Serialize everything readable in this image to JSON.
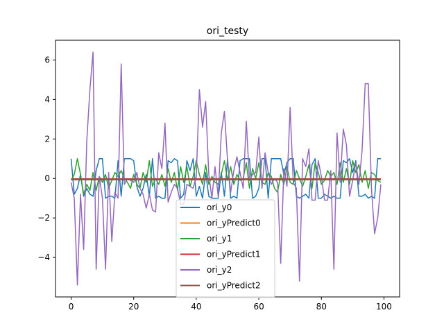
{
  "chart_data": {
    "type": "line",
    "title": "ori_testy",
    "xlabel": "",
    "ylabel": "",
    "xlim": [
      -5,
      105
    ],
    "ylim": [
      -6,
      7
    ],
    "xticks": [
      0,
      20,
      40,
      60,
      80,
      100
    ],
    "yticks": [
      -4,
      -2,
      0,
      2,
      4,
      6
    ],
    "grid": false,
    "legend_position": "lower-center",
    "series": [
      {
        "name": "ori_y0",
        "color": "#1f77b4",
        "x": [
          0,
          1,
          2,
          3,
          4,
          5,
          6,
          7,
          8,
          9,
          10,
          11,
          12,
          13,
          14,
          15,
          16,
          17,
          18,
          19,
          20,
          21,
          22,
          23,
          24,
          25,
          26,
          27,
          28,
          29,
          30,
          31,
          32,
          33,
          34,
          35,
          36,
          37,
          38,
          39,
          40,
          41,
          42,
          43,
          44,
          45,
          46,
          47,
          48,
          49,
          50,
          51,
          52,
          53,
          54,
          55,
          56,
          57,
          58,
          59,
          60,
          61,
          62,
          63,
          64,
          65,
          66,
          67,
          68,
          69,
          70,
          71,
          72,
          73,
          74,
          75,
          76,
          77,
          78,
          79,
          80,
          81,
          82,
          83,
          84,
          85,
          86,
          87,
          88,
          89,
          90,
          91,
          92,
          93,
          94,
          95,
          96,
          97,
          98,
          99
        ],
        "y": [
          1,
          -0.8,
          -0.5,
          0.2,
          -0.9,
          -0.5,
          -0.8,
          -0.9,
          0.4,
          1,
          1,
          -1,
          -0.9,
          -0.9,
          -1,
          0.9,
          -0.9,
          1,
          1,
          1,
          0.9,
          -0.4,
          -0.9,
          -0.5,
          0.2,
          -0.9,
          1,
          -1,
          -0.9,
          -1,
          -1,
          0.9,
          0.8,
          1,
          0.9,
          -1,
          -0.8,
          0.9,
          0.4,
          1,
          -0.9,
          -0.4,
          -1,
          0.3,
          -0.9,
          -1,
          -1,
          -1,
          0.3,
          -0.9,
          1,
          -1,
          -0.9,
          -1,
          0.9,
          1,
          1,
          1,
          -1,
          -0.9,
          -0.5,
          1,
          1,
          -1,
          1,
          1,
          1,
          1,
          0.2,
          0.8,
          1,
          1,
          -0.9,
          -1,
          -0.9,
          -0.8,
          -1,
          0.7,
          1,
          -1,
          -1,
          -0.8,
          -0.9,
          -1,
          -0.9,
          -1,
          -1,
          0.9,
          0.8,
          1,
          0.3,
          0.9,
          -0.9,
          -0.9,
          -0.8,
          -1,
          -0.9,
          -1,
          1,
          1
        ]
      },
      {
        "name": "ori_yPredict0",
        "color": "#ff7f0e",
        "x": [
          0,
          99
        ],
        "y": [
          -0.03,
          -0.03
        ]
      },
      {
        "name": "ori_y1",
        "color": "#2ca02c",
        "x": [
          0,
          1,
          2,
          3,
          4,
          5,
          6,
          7,
          8,
          9,
          10,
          11,
          12,
          13,
          14,
          15,
          16,
          17,
          18,
          19,
          20,
          21,
          22,
          23,
          24,
          25,
          26,
          27,
          28,
          29,
          30,
          31,
          32,
          33,
          34,
          35,
          36,
          37,
          38,
          39,
          40,
          41,
          42,
          43,
          44,
          45,
          46,
          47,
          48,
          49,
          50,
          51,
          52,
          53,
          54,
          55,
          56,
          57,
          58,
          59,
          60,
          61,
          62,
          63,
          64,
          65,
          66,
          67,
          68,
          69,
          70,
          71,
          72,
          73,
          74,
          75,
          76,
          77,
          78,
          79,
          80,
          81,
          82,
          83,
          84,
          85,
          86,
          87,
          88,
          89,
          90,
          91,
          92,
          93,
          94,
          95,
          96,
          97,
          98,
          99
        ],
        "y": [
          -0.1,
          0.2,
          1,
          0.2,
          -0.8,
          -0.3,
          -0.6,
          0.3,
          -0.6,
          0.1,
          -0.2,
          0.2,
          -0.5,
          -0.1,
          0.3,
          0.1,
          0.4,
          0,
          -0.2,
          -0.5,
          0.2,
          -0.3,
          -0.5,
          0.3,
          -0.2,
          0.9,
          -0.4,
          0,
          -0.3,
          0.2,
          -0.4,
          0.5,
          -0.2,
          0.3,
          -0.6,
          0.6,
          -0.2,
          0.6,
          -0.4,
          0.1,
          0.9,
          0.2,
          -0.3,
          0.7,
          -0.3,
          0.1,
          -0.2,
          -0.3,
          0.2,
          0.9,
          -0.1,
          0.6,
          -0.3,
          0.2,
          -0.1,
          0,
          0.8,
          -0.5,
          0.5,
          0,
          0.8,
          -0.2,
          -0.3,
          0.3,
          0.1,
          -0.5,
          -0.7,
          0.2,
          -0.3,
          0.6,
          -0.2,
          -0.3,
          0.4,
          0,
          -0.4,
          0.1,
          0.7,
          -0.5,
          0.8,
          0.3,
          -0.3,
          -0.1,
          0.4,
          0.1,
          0.3,
          -0.3,
          0.8,
          -0.2,
          0.5,
          -0.3,
          0.9,
          0.3,
          0.7,
          -0.2,
          0.4,
          -0.5,
          0.3,
          0.2,
          -0.1,
          -0.2
        ]
      },
      {
        "name": "ori_yPredict1",
        "color": "#d62728",
        "x": [
          0,
          99
        ],
        "y": [
          -0.04,
          -0.04
        ]
      },
      {
        "name": "ori_y2",
        "color": "#9467bd",
        "x": [
          0,
          1,
          2,
          3,
          4,
          5,
          6,
          7,
          8,
          9,
          10,
          11,
          12,
          13,
          14,
          15,
          16,
          17,
          18,
          19,
          20,
          21,
          22,
          23,
          24,
          25,
          26,
          27,
          28,
          29,
          30,
          31,
          32,
          33,
          34,
          35,
          36,
          37,
          38,
          39,
          40,
          41,
          42,
          43,
          44,
          45,
          46,
          47,
          48,
          49,
          50,
          51,
          52,
          53,
          54,
          55,
          56,
          57,
          58,
          59,
          60,
          61,
          62,
          63,
          64,
          65,
          66,
          67,
          68,
          69,
          70,
          71,
          72,
          73,
          74,
          75,
          76,
          77,
          78,
          79,
          80,
          81,
          82,
          83,
          84,
          85,
          86,
          87,
          88,
          89,
          90,
          91,
          92,
          93,
          94,
          95,
          96,
          97,
          98,
          99
        ],
        "y": [
          -0.2,
          -1,
          -5.4,
          -0.8,
          -3.6,
          1.9,
          4.5,
          6.4,
          -4.6,
          0.1,
          -1,
          -4.6,
          0.3,
          -3.2,
          -0.7,
          -1,
          5.8,
          -0.3,
          0,
          -0.1,
          -0.2,
          0.3,
          -0.5,
          -0.8,
          -1.5,
          -0.8,
          -1.6,
          -1.7,
          1.3,
          0.5,
          2.8,
          -1.2,
          -0.7,
          -0.3,
          -0.5,
          -1.3,
          -1.3,
          -0.3,
          -0.4,
          -0.5,
          0.1,
          4.5,
          2.6,
          3.9,
          0.2,
          -1,
          0.6,
          -0.9,
          2.3,
          3.4,
          0.9,
          -0.7,
          0.4,
          1.1,
          0.3,
          -0.5,
          2.9,
          -0.1,
          0.2,
          0.3,
          2.1,
          -0.5,
          1.3,
          0.3,
          -0.3,
          0,
          -0.2,
          -4.3,
          0.5,
          -0.4,
          3.6,
          -0.2,
          -0.5,
          -5.2,
          1,
          0.6,
          1.5,
          -1.1,
          -1.1,
          0.9,
          0.1,
          -1.1,
          -1.1,
          0.4,
          -4.6,
          2.3,
          -0.2,
          2.5,
          1.7,
          -0.9,
          -0.1,
          0.8,
          -0.3,
          1.4,
          4.8,
          4.8,
          -0.5,
          -2.8,
          -2,
          -0.3
        ]
      },
      {
        "name": "ori_yPredict2",
        "color": "#8c564b",
        "x": [
          0,
          99
        ],
        "y": [
          -0.05,
          -0.05
        ]
      }
    ]
  }
}
